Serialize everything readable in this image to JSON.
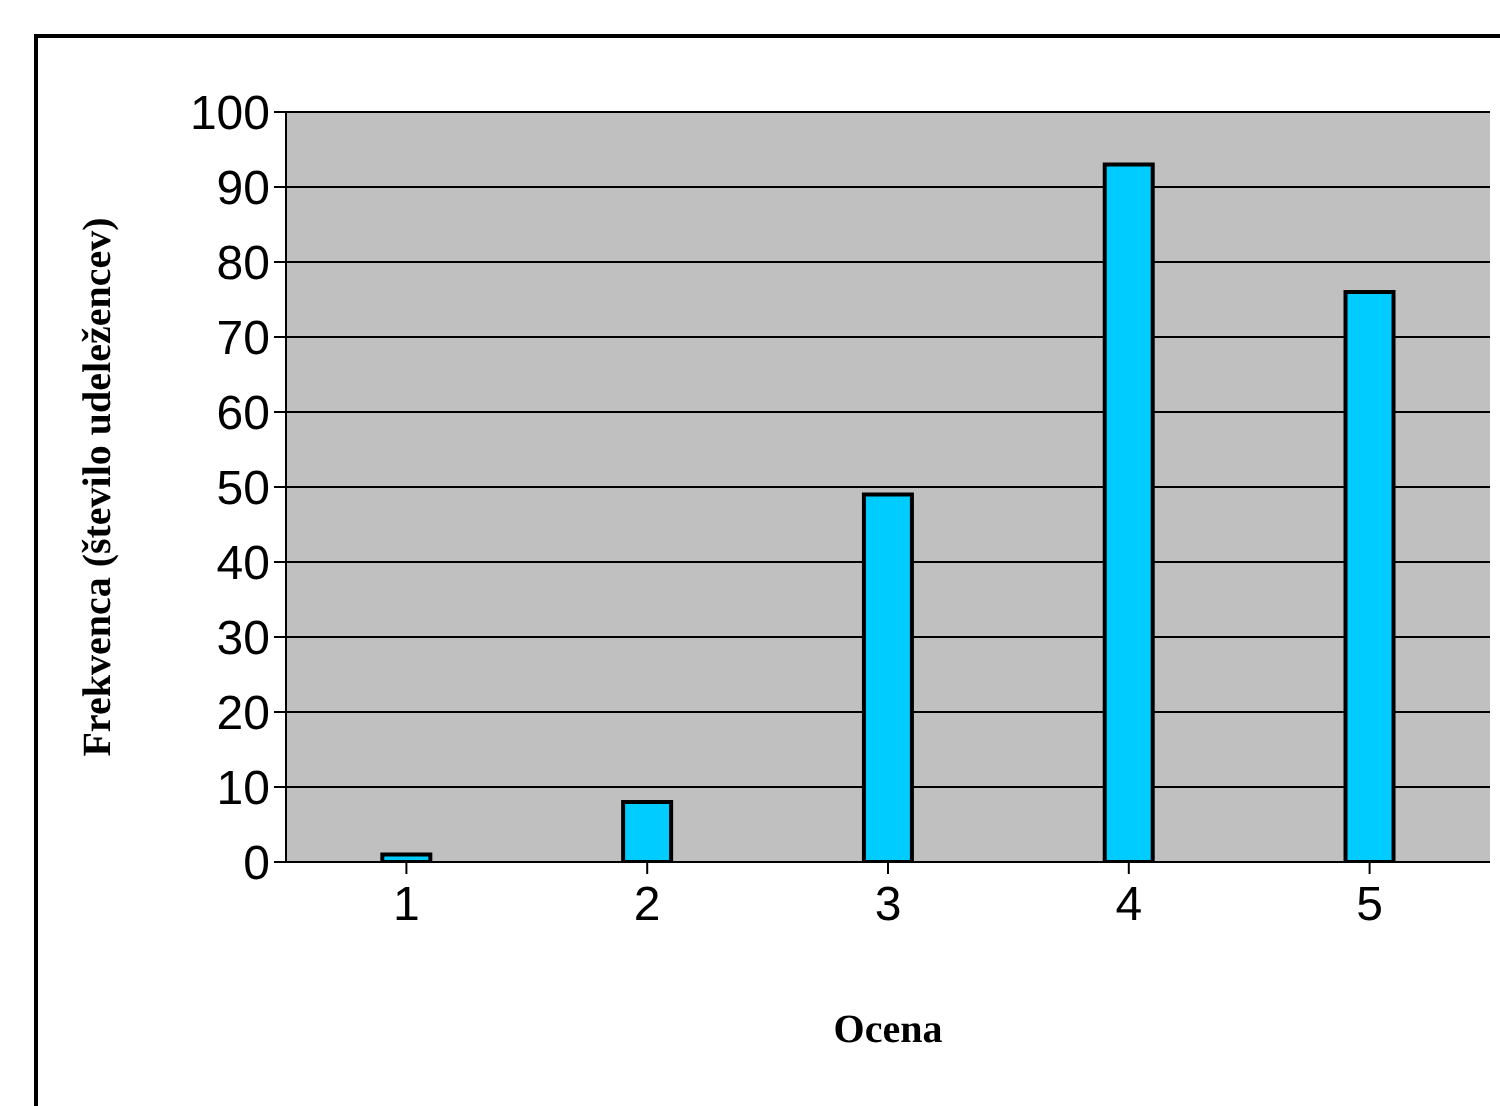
{
  "chart_data": {
    "type": "bar",
    "xlabel": "Ocena",
    "ylabel": "Frekvenca (število udeležencev)",
    "categories": [
      "1",
      "2",
      "3",
      "4",
      "5"
    ],
    "values": [
      1,
      8,
      49,
      93,
      76
    ],
    "color": "#00ccff",
    "ylim": [
      0,
      100
    ],
    "yticks": [
      0,
      10,
      20,
      30,
      40,
      50,
      60,
      70,
      80,
      90,
      100
    ],
    "grid": "y",
    "legend": false
  }
}
